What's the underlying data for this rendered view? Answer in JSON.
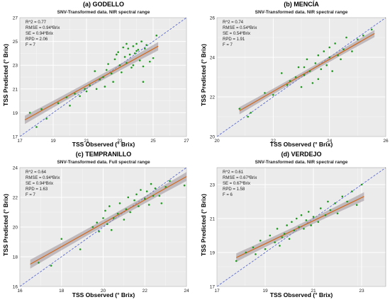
{
  "chart_data": [
    {
      "type": "scatter",
      "title": "(a) GODELLO",
      "subtitle": "SNV-Transformed data. NIR spectral range",
      "xlabel": "TSS Observed (° Brix)",
      "ylabel": "TSS Predicted (° Brix)",
      "xlim": [
        17,
        27
      ],
      "ylim": [
        17,
        27
      ],
      "xticks": [
        "17",
        "19",
        "21",
        "23",
        "25",
        "27"
      ],
      "yticks": [
        "17",
        "19",
        "21",
        "23",
        "25",
        "27"
      ],
      "stats": [
        "R^2 = 0.77",
        "RMSE = 0.94ºBrix",
        "SE = 0.94ºBrix",
        "RPD = 2.06",
        "F = 7"
      ],
      "fit": {
        "x": [
          17.3,
          25.3
        ],
        "y": [
          18.4,
          24.6
        ],
        "band": 0.35
      },
      "points": [
        [
          17.6,
          19.0
        ],
        [
          18.0,
          17.8
        ],
        [
          18.3,
          19.3
        ],
        [
          18.6,
          18.5
        ],
        [
          19.3,
          19.8
        ],
        [
          19.8,
          20.3
        ],
        [
          20.3,
          20.6
        ],
        [
          20.6,
          20.4
        ],
        [
          20.9,
          21.0
        ],
        [
          21.0,
          20.8
        ],
        [
          21.2,
          21.3
        ],
        [
          21.5,
          22.5
        ],
        [
          21.8,
          21.8
        ],
        [
          22.0,
          22.0
        ],
        [
          22.2,
          22.6
        ],
        [
          22.3,
          23.1
        ],
        [
          22.5,
          22.3
        ],
        [
          22.6,
          21.6
        ],
        [
          22.7,
          23.5
        ],
        [
          22.9,
          24.1
        ],
        [
          23.0,
          23.0
        ],
        [
          23.1,
          22.4
        ],
        [
          23.2,
          24.5
        ],
        [
          23.3,
          23.7
        ],
        [
          23.4,
          23.2
        ],
        [
          23.5,
          24.4
        ],
        [
          23.6,
          23.9
        ],
        [
          23.7,
          22.8
        ],
        [
          23.8,
          24.6
        ],
        [
          23.9,
          24.0
        ],
        [
          24.0,
          24.8
        ],
        [
          24.1,
          24.3
        ],
        [
          24.2,
          23.4
        ],
        [
          24.3,
          25.0
        ],
        [
          24.4,
          22.9
        ],
        [
          24.5,
          24.4
        ],
        [
          24.6,
          24.7
        ],
        [
          24.8,
          23.3
        ],
        [
          25.0,
          23.6
        ],
        [
          25.2,
          25.5
        ],
        [
          21.6,
          21.0
        ],
        [
          22.1,
          21.2
        ],
        [
          23.8,
          23.0
        ],
        [
          24.4,
          21.6
        ],
        [
          20.0,
          19.6
        ],
        [
          22.8,
          23.9
        ],
        [
          23.4,
          24.8
        ],
        [
          24.0,
          24.2
        ]
      ]
    },
    {
      "type": "scatter",
      "title": "(b) MENCÍA",
      "subtitle": "SNV-Transformed data. NIR spectral range",
      "xlabel": "TSS Observed (° Brix)",
      "ylabel": "TSS Predicted (° Brix)",
      "xlim": [
        20,
        26
      ],
      "ylim": [
        20,
        26
      ],
      "xticks": [
        "20",
        "22",
        "24",
        "26"
      ],
      "yticks": [
        "20",
        "22",
        "24",
        "26"
      ],
      "stats": [
        "R^2 = 0.74",
        "RMSE = 0.54ºBrix",
        "SE = 0.54ºBrix",
        "RPD = 1.91",
        "F = 7"
      ],
      "fit": {
        "x": [
          20.8,
          25.6
        ],
        "y": [
          21.3,
          25.2
        ],
        "band": 0.18
      },
      "points": [
        [
          20.8,
          21.4
        ],
        [
          21.1,
          21.0
        ],
        [
          21.2,
          21.2
        ],
        [
          21.7,
          22.2
        ],
        [
          22.0,
          22.1
        ],
        [
          22.3,
          23.2
        ],
        [
          22.5,
          22.6
        ],
        [
          22.6,
          22.8
        ],
        [
          22.8,
          23.0
        ],
        [
          22.9,
          23.5
        ],
        [
          23.0,
          22.5
        ],
        [
          23.1,
          23.1
        ],
        [
          23.2,
          23.9
        ],
        [
          23.3,
          23.3
        ],
        [
          23.4,
          22.7
        ],
        [
          23.5,
          23.7
        ],
        [
          23.6,
          24.1
        ],
        [
          23.7,
          23.4
        ],
        [
          23.8,
          24.3
        ],
        [
          23.9,
          23.6
        ],
        [
          24.0,
          24.0
        ],
        [
          24.0,
          24.5
        ],
        [
          24.1,
          23.3
        ],
        [
          24.2,
          24.7
        ],
        [
          24.3,
          24.1
        ],
        [
          24.4,
          23.9
        ],
        [
          24.5,
          24.4
        ],
        [
          24.6,
          25.0
        ],
        [
          24.8,
          24.3
        ],
        [
          25.0,
          24.9
        ],
        [
          25.2,
          25.1
        ],
        [
          25.5,
          25.4
        ],
        [
          23.1,
          23.5
        ],
        [
          23.6,
          22.9
        ]
      ]
    },
    {
      "type": "scatter",
      "title": "(c) TEMPRANILLO",
      "subtitle": "SNV-Transformed data. Full spectral range",
      "xlabel": "TSS Observed (° Brix)",
      "ylabel": "TSS Predicted (° Brix)",
      "xlim": [
        16,
        24
      ],
      "ylim": [
        16,
        24
      ],
      "xticks": [
        "16",
        "18",
        "20",
        "22",
        "24"
      ],
      "yticks": [
        "16",
        "18",
        "20",
        "22",
        "24"
      ],
      "stats": [
        "R^2 = 0.64",
        "RMSE = 0.94ºBrix",
        "SE = 0.94ºBrix",
        "RPD = 1.63",
        "F = 7"
      ],
      "fit": {
        "x": [
          16.5,
          24.0
        ],
        "y": [
          17.5,
          23.4
        ],
        "band": 0.3
      },
      "points": [
        [
          16.9,
          17.6
        ],
        [
          17.5,
          17.4
        ],
        [
          18.0,
          19.2
        ],
        [
          18.9,
          18.5
        ],
        [
          19.5,
          20.0
        ],
        [
          19.7,
          20.3
        ],
        [
          19.8,
          19.7
        ],
        [
          20.0,
          20.6
        ],
        [
          20.1,
          21.1
        ],
        [
          20.2,
          20.2
        ],
        [
          20.3,
          21.4
        ],
        [
          20.5,
          20.6
        ],
        [
          20.7,
          20.9
        ],
        [
          20.8,
          21.6
        ],
        [
          21.0,
          20.5
        ],
        [
          21.1,
          21.2
        ],
        [
          21.2,
          22.0
        ],
        [
          21.3,
          21.0
        ],
        [
          21.5,
          21.8
        ],
        [
          21.6,
          22.2
        ],
        [
          21.7,
          21.4
        ],
        [
          21.8,
          22.5
        ],
        [
          22.0,
          21.9
        ],
        [
          22.1,
          22.4
        ],
        [
          22.2,
          21.5
        ],
        [
          22.3,
          22.9
        ],
        [
          22.4,
          22.1
        ],
        [
          22.5,
          22.6
        ],
        [
          22.7,
          22.1
        ],
        [
          22.8,
          21.6
        ],
        [
          23.0,
          22.7
        ],
        [
          23.2,
          23.1
        ],
        [
          23.9,
          22.8
        ],
        [
          20.4,
          19.8
        ]
      ]
    },
    {
      "type": "scatter",
      "title": "(d) VERDEJO",
      "subtitle": "SNV-Transformed data. NIR spectral range",
      "xlabel": "TSS Observed (° Brix)",
      "ylabel": "TSS Predicted (° Brix)",
      "xlim": [
        17,
        24
      ],
      "ylim": [
        17,
        24
      ],
      "xticks": [
        "17",
        "19",
        "21",
        "23"
      ],
      "yticks": [
        "17",
        "19",
        "21",
        "23"
      ],
      "stats": [
        "R^2 = 0.61",
        "RMSE = 0.67ºBrix",
        "SE = 0.67ºBrix",
        "RPD = 1.58",
        "F = 6"
      ],
      "fit": {
        "x": [
          17.8,
          23.1
        ],
        "y": [
          18.7,
          22.3
        ],
        "band": 0.25
      },
      "points": [
        [
          17.8,
          18.5
        ],
        [
          18.2,
          19.0
        ],
        [
          18.5,
          19.3
        ],
        [
          18.8,
          19.7
        ],
        [
          19.0,
          19.2
        ],
        [
          19.2,
          20.0
        ],
        [
          19.4,
          19.6
        ],
        [
          19.5,
          20.4
        ],
        [
          19.7,
          19.9
        ],
        [
          19.8,
          20.1
        ],
        [
          19.9,
          20.6
        ],
        [
          20.0,
          19.8
        ],
        [
          20.1,
          20.8
        ],
        [
          20.2,
          20.3
        ],
        [
          20.3,
          21.0
        ],
        [
          20.4,
          20.5
        ],
        [
          20.5,
          21.2
        ],
        [
          20.6,
          20.4
        ],
        [
          20.7,
          20.9
        ],
        [
          20.8,
          21.4
        ],
        [
          20.9,
          20.6
        ],
        [
          21.0,
          21.1
        ],
        [
          21.2,
          20.8
        ],
        [
          21.3,
          21.6
        ],
        [
          21.5,
          21.2
        ],
        [
          21.6,
          22.0
        ],
        [
          21.7,
          21.5
        ],
        [
          21.9,
          21.9
        ],
        [
          22.0,
          21.3
        ],
        [
          22.2,
          22.3
        ],
        [
          22.4,
          22.0
        ],
        [
          22.6,
          22.6
        ],
        [
          22.8,
          21.8
        ],
        [
          23.0,
          23.0
        ],
        [
          18.6,
          18.9
        ],
        [
          19.6,
          19.4
        ]
      ]
    }
  ]
}
